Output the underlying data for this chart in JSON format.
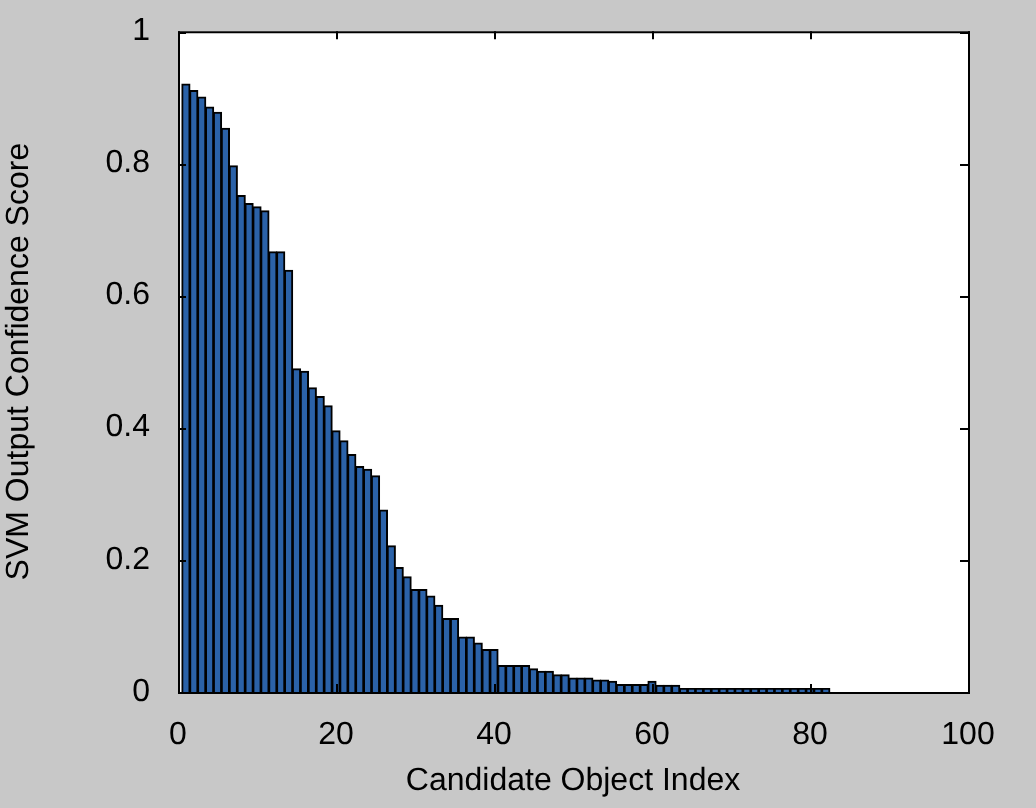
{
  "chart_data": {
    "type": "bar",
    "xlabel": "Candidate Object Index",
    "ylabel": "SVM Output Confidence Score",
    "x": [
      1,
      2,
      3,
      4,
      5,
      6,
      7,
      8,
      9,
      10,
      11,
      12,
      13,
      14,
      15,
      16,
      17,
      18,
      19,
      20,
      21,
      22,
      23,
      24,
      25,
      26,
      27,
      28,
      29,
      30,
      31,
      32,
      33,
      34,
      35,
      36,
      37,
      38,
      39,
      40,
      41,
      42,
      43,
      44,
      45,
      46,
      47,
      48,
      49,
      50,
      51,
      52,
      53,
      54,
      55,
      56,
      57,
      58,
      59,
      60,
      61,
      62,
      63,
      64,
      65,
      66,
      67,
      68,
      69,
      70,
      71,
      72,
      73,
      74,
      75,
      76,
      77,
      78,
      79,
      80,
      81,
      82
    ],
    "values": [
      0.92,
      0.91,
      0.9,
      0.885,
      0.877,
      0.853,
      0.796,
      0.751,
      0.739,
      0.734,
      0.728,
      0.666,
      0.666,
      0.638,
      0.489,
      0.485,
      0.46,
      0.447,
      0.433,
      0.395,
      0.38,
      0.359,
      0.341,
      0.337,
      0.327,
      0.275,
      0.221,
      0.188,
      0.174,
      0.155,
      0.155,
      0.145,
      0.131,
      0.111,
      0.111,
      0.083,
      0.083,
      0.074,
      0.064,
      0.064,
      0.04,
      0.04,
      0.04,
      0.04,
      0.035,
      0.031,
      0.031,
      0.026,
      0.026,
      0.021,
      0.021,
      0.021,
      0.018,
      0.018,
      0.016,
      0.011,
      0.011,
      0.011,
      0.011,
      0.016,
      0.01,
      0.01,
      0.01,
      0.005,
      0.005,
      0.005,
      0.005,
      0.005,
      0.005,
      0.005,
      0.005,
      0.005,
      0.005,
      0.005,
      0.005,
      0.005,
      0.005,
      0.005,
      0.005,
      0.005,
      0.005,
      0.005
    ],
    "color": "#2b62a8",
    "xlim": [
      0,
      100
    ],
    "xticks": [
      0,
      20,
      40,
      60,
      80,
      100
    ],
    "ylim": [
      0,
      1
    ],
    "yticks": [
      0,
      0.2,
      0.4,
      0.6,
      0.8,
      1
    ],
    "legend": false
  }
}
